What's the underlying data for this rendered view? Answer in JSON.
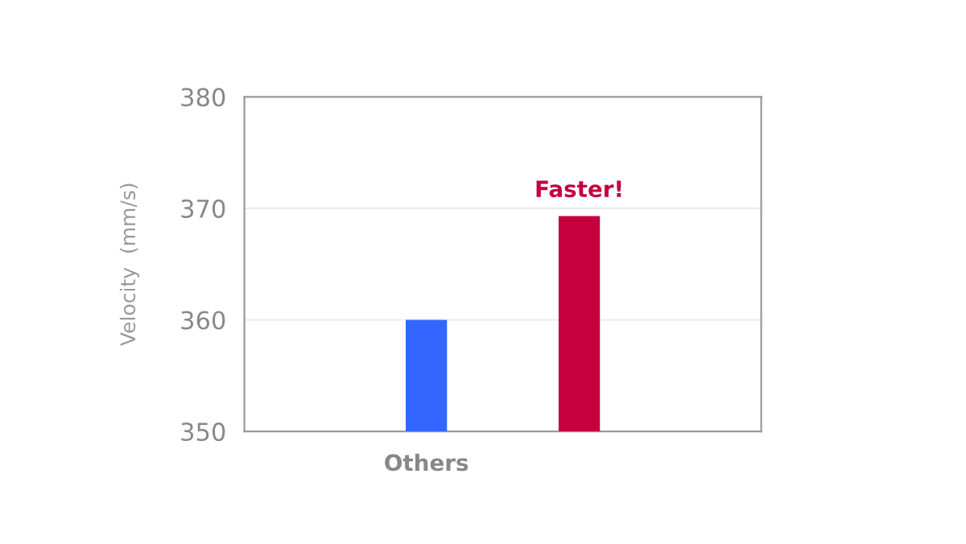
{
  "chart_data": {
    "type": "bar",
    "ylabel": "Velocity  (mm/s)",
    "categories": [
      "Others",
      null
    ],
    "values": [
      360,
      369.3
    ],
    "colors": [
      "#3366ff",
      "#c4003f"
    ],
    "ylim": [
      350,
      380
    ],
    "yticks": [
      350,
      360,
      370,
      380
    ],
    "grid": "y",
    "annotations": [
      "Faster!"
    ]
  }
}
